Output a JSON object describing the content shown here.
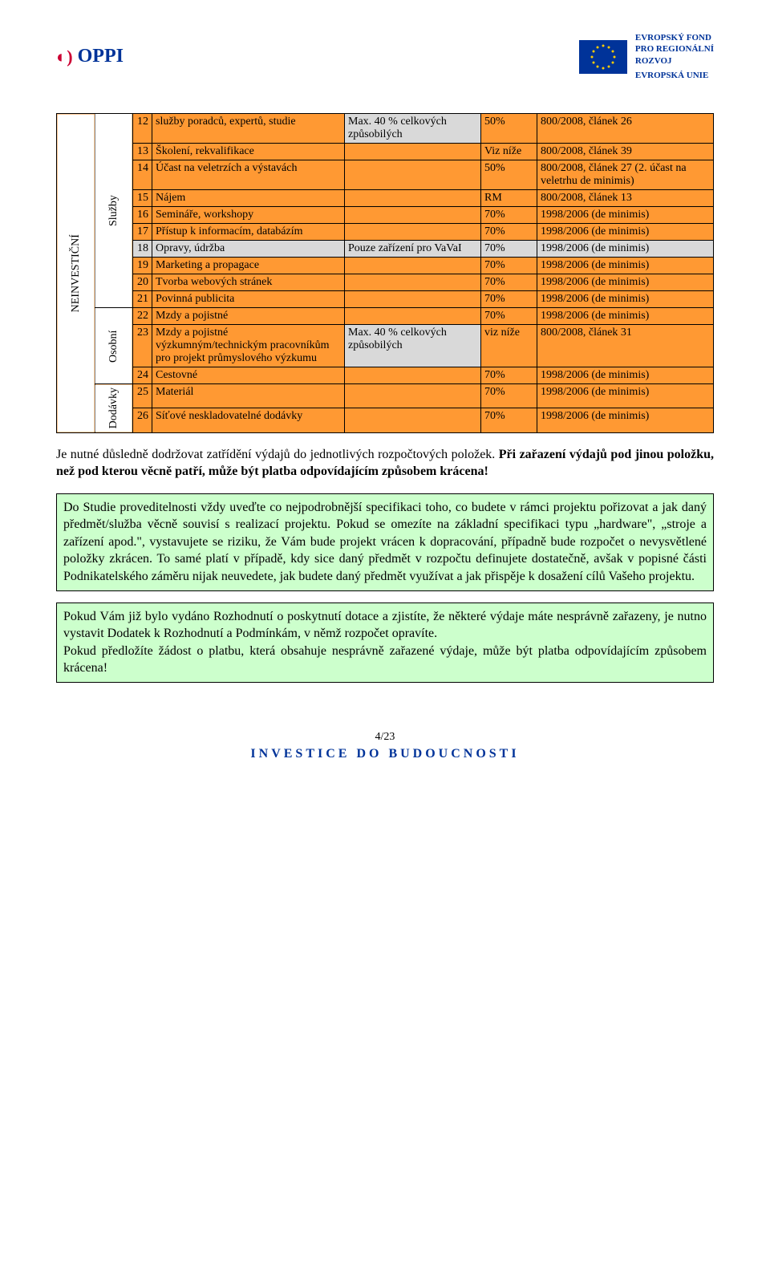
{
  "header": {
    "logo_left": "OPPI",
    "eu_text_line1": "EVROPSKÝ FOND",
    "eu_text_line2": "PRO REGIONÁLNÍ",
    "eu_text_line3": "ROZVOJ",
    "eu_text_line4": "EVROPSKÁ UNIE"
  },
  "vertical_labels": {
    "col0": "NEINVESTIČNÍ",
    "sluzby": "Služby",
    "osobni": "Osobní",
    "dodavky": "Dodávky"
  },
  "rows": [
    {
      "n": "12",
      "desc": "služby poradců, expertů, studie",
      "note": "Max. 40 % celkových způsobilých",
      "pct": "50%",
      "law": "800/2008, článek 26",
      "bg": "orange"
    },
    {
      "n": "13",
      "desc": "Školení, rekvalifikace",
      "note": "",
      "pct": "Viz níže",
      "law": "800/2008, článek 39",
      "bg": "orange"
    },
    {
      "n": "14",
      "desc": "Účast na veletrzích a výstavách",
      "note": "",
      "pct": "50%",
      "law": "800/2008, článek 27 (2. účast na veletrhu de minimis)",
      "bg": "orange"
    },
    {
      "n": "15",
      "desc": "Nájem",
      "note": "",
      "pct": "RM",
      "law": "800/2008, článek 13",
      "bg": "orange"
    },
    {
      "n": "16",
      "desc": "Semináře, workshopy",
      "note": "",
      "pct": "70%",
      "law": "1998/2006 (de minimis)",
      "bg": "orange"
    },
    {
      "n": "17",
      "desc": "Přístup k informacím, databázím",
      "note": "",
      "pct": "70%",
      "law": "1998/2006 (de minimis)",
      "bg": "orange"
    },
    {
      "n": "18",
      "desc": "Opravy, údržba",
      "note": "Pouze zařízení pro VaVaI",
      "pct": "70%",
      "law": "1998/2006 (de minimis)",
      "bg": "gray"
    },
    {
      "n": "19",
      "desc": "Marketing a propagace",
      "note": "",
      "pct": "70%",
      "law": "1998/2006 (de minimis)",
      "bg": "orange"
    },
    {
      "n": "20",
      "desc": "Tvorba webových stránek",
      "note": "",
      "pct": "70%",
      "law": "1998/2006 (de minimis)",
      "bg": "orange"
    },
    {
      "n": "21",
      "desc": "Povinná publicita",
      "note": "",
      "pct": "70%",
      "law": "1998/2006 (de minimis)",
      "bg": "orange"
    },
    {
      "n": "22",
      "desc": "Mzdy a pojistné",
      "note": "",
      "pct": "70%",
      "law": "1998/2006 (de minimis)",
      "bg": "orange"
    },
    {
      "n": "23",
      "desc": "Mzdy a pojistné výzkumným/technickým pracovníkům pro projekt průmyslového výzkumu",
      "note": "Max. 40 % celkových způsobilých",
      "pct": "viz níže",
      "law": "800/2008, článek 31",
      "bg": "orange"
    },
    {
      "n": "24",
      "desc": "Cestovné",
      "note": "",
      "pct": "70%",
      "law": "1998/2006 (de minimis)",
      "bg": "orange"
    },
    {
      "n": "25",
      "desc": "Materiál",
      "note": "",
      "pct": "70%",
      "law": "1998/2006 (de minimis)",
      "bg": "orange"
    },
    {
      "n": "26",
      "desc": "Síťové neskladovatelné dodávky",
      "note": "",
      "pct": "70%",
      "law": "1998/2006 (de minimis)",
      "bg": "orange"
    }
  ],
  "para1_pre": "Je nutné důsledně dodržovat zatřídění výdajů do jednotlivých rozpočtových položek. ",
  "para1_bold": "Při zařazení výdajů pod jinou položku, než pod kterou věcně patří, může být platba odpovídajícím způsobem krácena!",
  "box1": "Do Studie proveditelnosti vždy uveďte co nejpodrobnější specifikaci toho, co budete v rámci projektu pořizovat a jak daný předmět/služba věcně souvisí s realizací projektu. Pokud se omezíte na základní specifikaci typu „hardware\", „stroje a zařízení apod.\", vystavujete se riziku, že Vám bude projekt vrácen k dopracování, případně bude rozpočet o nevysvětlené položky zkrácen. To samé platí v případě, kdy sice daný předmět v rozpočtu definujete dostatečně, avšak v popisné části Podnikatelského záměru nijak neuvedete, jak budete daný předmět využívat a jak přispěje k dosažení cílů Vašeho projektu.",
  "box2_p1": "Pokud Vám již bylo vydáno Rozhodnutí o poskytnutí dotace a zjistíte, že některé výdaje máte nesprávně zařazeny, je nutno vystavit Dodatek k Rozhodnutí a Podmínkám, v němž rozpočet opravíte.",
  "box2_p2": "Pokud předložíte žádost o platbu, která obsahuje nesprávně zařazené výdaje, může být platba odpovídajícím způsobem krácena!",
  "footer": {
    "pageno": "4/23",
    "invest": "INVESTICE DO BUDOUCNOSTI"
  },
  "colors": {
    "orange": "#ff9933",
    "gray": "#d9d9d9",
    "green": "#ccffcc",
    "blue": "#003399",
    "red": "#cc0033"
  }
}
